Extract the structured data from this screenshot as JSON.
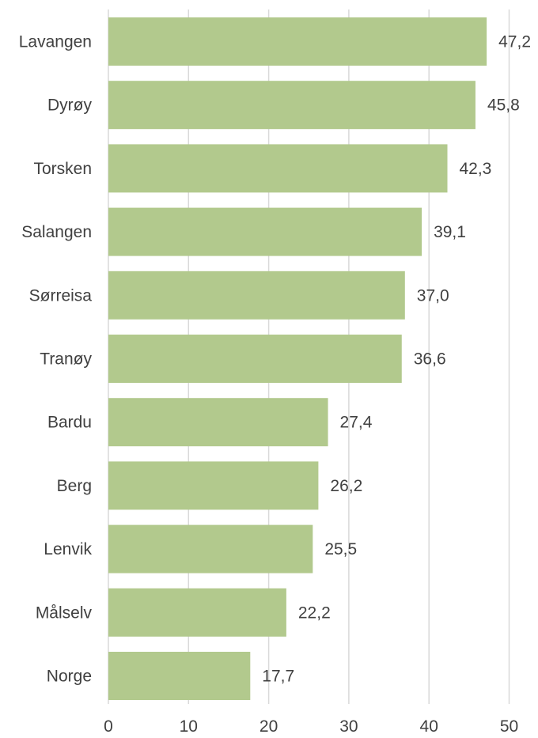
{
  "chart_data": {
    "type": "bar",
    "orientation": "horizontal",
    "categories": [
      "Lavangen",
      "Dyrøy",
      "Torsken",
      "Salangen",
      "Sørreisa",
      "Tranøy",
      "Bardu",
      "Berg",
      "Lenvik",
      "Målselv",
      "Norge"
    ],
    "values": [
      47.2,
      45.8,
      42.3,
      39.1,
      37.0,
      36.6,
      27.4,
      26.2,
      25.5,
      22.2,
      17.7
    ],
    "value_labels": [
      "47,2",
      "45,8",
      "42,3",
      "39,1",
      "37,0",
      "36,6",
      "27,4",
      "26,2",
      "25,5",
      "22,2",
      "17,7"
    ],
    "xlim": [
      0,
      50
    ],
    "xticks": [
      "0",
      "10",
      "20",
      "30",
      "40",
      "50"
    ],
    "grid": "vertical",
    "legend": "none",
    "bar_color": "#b2c98d",
    "title": "",
    "xlabel": "",
    "ylabel": ""
  }
}
